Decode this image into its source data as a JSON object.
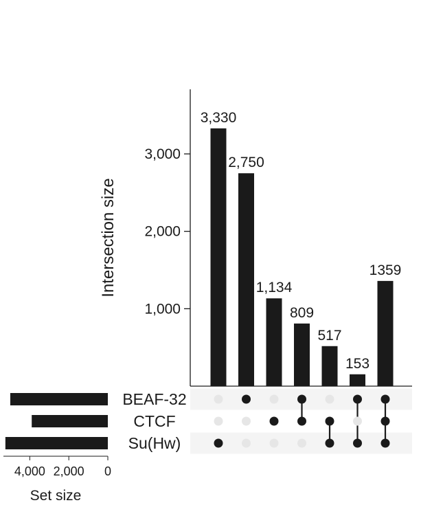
{
  "chart_data": {
    "type": "bar",
    "subtype": "upset",
    "ylabel": "Intersection size",
    "ylim": [
      0,
      3700
    ],
    "yticks": [
      1000,
      2000,
      3000
    ],
    "ytick_labels": [
      "1,000",
      "2,000",
      "3,000"
    ],
    "bar_color": "#1a1a1a",
    "inactive_dot_color": "#e6e6e6",
    "stripe_color": "#f4f4f4",
    "sets": [
      "BEAF-32",
      "CTCF",
      "Su(Hw)"
    ],
    "intersections": [
      {
        "members": [
          "Su(Hw)"
        ],
        "value": 3330,
        "label": "3,330"
      },
      {
        "members": [
          "BEAF-32"
        ],
        "value": 2750,
        "label": "2,750"
      },
      {
        "members": [
          "CTCF"
        ],
        "value": 1134,
        "label": "1,134"
      },
      {
        "members": [
          "BEAF-32",
          "CTCF"
        ],
        "value": 809,
        "label": "809"
      },
      {
        "members": [
          "CTCF",
          "Su(Hw)"
        ],
        "value": 517,
        "label": "517"
      },
      {
        "members": [
          "BEAF-32",
          "Su(Hw)"
        ],
        "value": 153,
        "label": "153"
      },
      {
        "members": [
          "BEAF-32",
          "CTCF",
          "Su(Hw)"
        ],
        "value": 1359,
        "label": "1359"
      }
    ],
    "set_sizes": {
      "title": "Set size",
      "xlim": [
        0,
        5400
      ],
      "xticks": [
        4000,
        2000,
        0
      ],
      "xtick_labels": [
        "4,000",
        "2,000",
        "0"
      ],
      "values": [
        5000,
        3900,
        5250
      ]
    }
  }
}
